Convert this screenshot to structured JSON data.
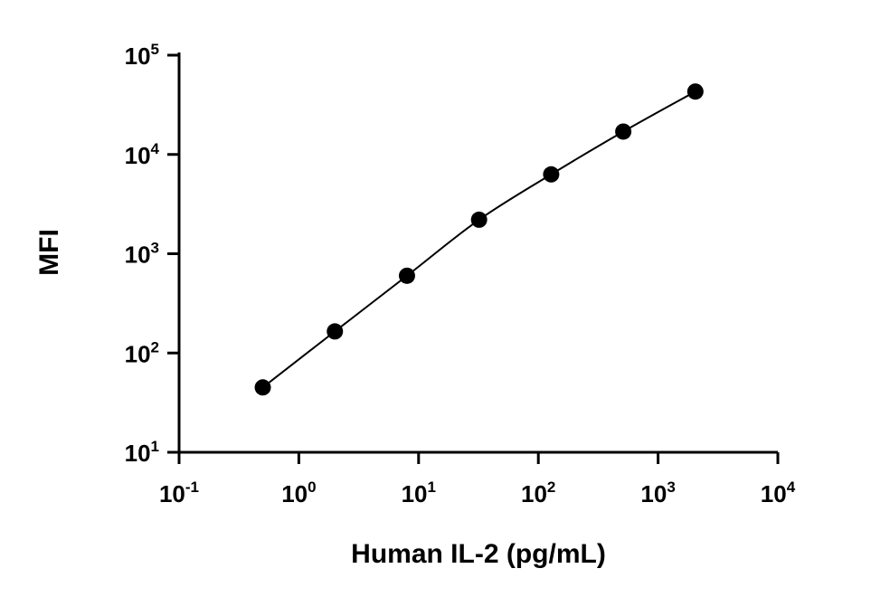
{
  "chart_data": {
    "type": "scatter",
    "title": "",
    "xlabel": "Human IL-2 (pg/mL)",
    "ylabel": "MFI",
    "x_scale": "log",
    "y_scale": "log",
    "xlim": [
      0.1,
      10000
    ],
    "ylim": [
      10,
      100000
    ],
    "x_ticks": [
      {
        "base": "10",
        "exp": "-1",
        "value": 0.1
      },
      {
        "base": "10",
        "exp": "0",
        "value": 1
      },
      {
        "base": "10",
        "exp": "1",
        "value": 10
      },
      {
        "base": "10",
        "exp": "2",
        "value": 100
      },
      {
        "base": "10",
        "exp": "3",
        "value": 1000
      },
      {
        "base": "10",
        "exp": "4",
        "value": 10000
      }
    ],
    "y_ticks": [
      {
        "base": "10",
        "exp": "1",
        "value": 10
      },
      {
        "base": "10",
        "exp": "2",
        "value": 100
      },
      {
        "base": "10",
        "exp": "3",
        "value": 1000
      },
      {
        "base": "10",
        "exp": "4",
        "value": 10000
      },
      {
        "base": "10",
        "exp": "5",
        "value": 100000
      }
    ],
    "grid": false,
    "series": [
      {
        "x": [
          0.5,
          2,
          8,
          32,
          128,
          512,
          2048
        ],
        "y": [
          45,
          165,
          600,
          2200,
          6300,
          17000,
          43000
        ],
        "marker": "circle",
        "color": "#000000",
        "fit_line": true
      }
    ]
  }
}
